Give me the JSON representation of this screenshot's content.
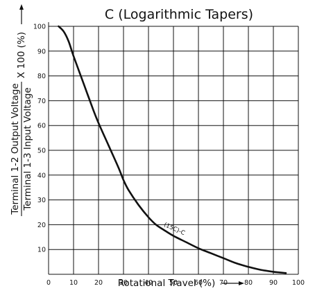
{
  "chart_data": {
    "type": "line",
    "title": "C (Logarithmic Tapers)",
    "xlabel": "Rotational Travel (%)",
    "ylabel": {
      "numerator": "Terminal 1-2 Output Voltage",
      "denominator": "Terminal 1-3 Input Voltage",
      "multiplier": "X 100 (%)"
    },
    "xlim": [
      0,
      100
    ],
    "ylim": [
      0,
      100
    ],
    "x_ticks": [
      "0",
      "10",
      "20",
      "30",
      "40",
      "50",
      "60",
      "70",
      "80",
      "90",
      "100"
    ],
    "y_ticks": [
      "10",
      "20",
      "30",
      "40",
      "50",
      "60",
      "70",
      "80",
      "90",
      "100"
    ],
    "grid": true,
    "series": [
      {
        "name": "(15C)-C",
        "x": [
          4,
          6,
          8,
          10,
          14,
          18,
          20,
          24,
          28,
          30,
          32,
          36,
          40,
          43,
          46,
          50,
          55,
          60,
          65,
          70,
          75,
          80,
          85,
          90,
          95
        ],
        "y": [
          100,
          98,
          94,
          88,
          77,
          66,
          61,
          52,
          43,
          38,
          34,
          28,
          23,
          20,
          18,
          15.5,
          13,
          10.5,
          8.5,
          6.5,
          4.5,
          3,
          1.8,
          1,
          0.5
        ]
      }
    ],
    "annotation": "(15C)-C"
  }
}
